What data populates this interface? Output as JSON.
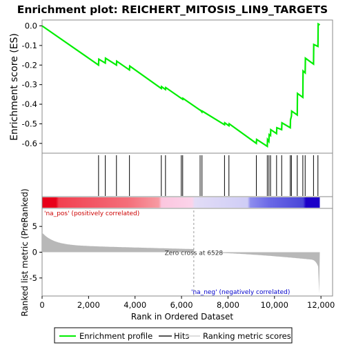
{
  "title": "Enrichment plot: REICHERT_MITOSIS_LIN9_TARGETS",
  "colors": {
    "profile": "#00ee00",
    "hits": "#000000",
    "metric_fill": "#b8b8b8",
    "pos_label": "#cc0000",
    "neg_label": "#0000cc",
    "zero_line": "#999999"
  },
  "chart_data": {
    "type": "line",
    "xlabel": "Rank in Ordered Dataset",
    "x_ticks": [
      0,
      2000,
      4000,
      6000,
      8000,
      10000,
      12000
    ],
    "x_tick_labels": [
      "0",
      "2,000",
      "4,000",
      "6,000",
      "8,000",
      "10,000",
      "12,000"
    ],
    "xlim": [
      0,
      12500
    ],
    "n_genes": 11950,
    "es_panel": {
      "ylabel": "Enrichment score (ES)",
      "ylim": [
        -0.65,
        0.03
      ],
      "y_ticks": [
        0.0,
        -0.1,
        -0.2,
        -0.3,
        -0.4,
        -0.5,
        -0.6
      ],
      "y_tick_labels": [
        "0.0",
        "-0.1",
        "-0.2",
        "-0.3",
        "-0.4",
        "-0.5",
        "-0.6"
      ],
      "series": [
        {
          "name": "Enrichment profile",
          "x": [
            0,
            2430,
            2440,
            2720,
            2730,
            3200,
            3210,
            3760,
            3770,
            5130,
            5140,
            5310,
            5320,
            5990,
            6000,
            6050,
            6060,
            6800,
            6810,
            6880,
            6890,
            7850,
            7860,
            8040,
            8050,
            9220,
            9230,
            9690,
            9700,
            9760,
            9770,
            9830,
            9840,
            10090,
            10100,
            10310,
            10320,
            10680,
            10690,
            10730,
            10740,
            10980,
            10990,
            11220,
            11230,
            11320,
            11330,
            11680,
            11690,
            11870,
            11880,
            11950
          ],
          "y": [
            0.0,
            -0.2,
            -0.17,
            -0.19,
            -0.165,
            -0.2,
            -0.18,
            -0.225,
            -0.205,
            -0.32,
            -0.31,
            -0.325,
            -0.315,
            -0.37,
            -0.37,
            -0.375,
            -0.37,
            -0.43,
            -0.43,
            -0.44,
            -0.435,
            -0.505,
            -0.495,
            -0.51,
            -0.5,
            -0.6,
            -0.58,
            -0.615,
            -0.58,
            -0.59,
            -0.555,
            -0.56,
            -0.53,
            -0.55,
            -0.52,
            -0.53,
            -0.495,
            -0.52,
            -0.48,
            -0.46,
            -0.435,
            -0.455,
            -0.345,
            -0.365,
            -0.23,
            -0.24,
            -0.165,
            -0.195,
            -0.095,
            -0.105,
            0.01,
            0.005
          ]
        }
      ]
    },
    "hits": [
      2430,
      2720,
      3200,
      3760,
      5130,
      5310,
      5990,
      6050,
      6800,
      6880,
      7850,
      8040,
      9220,
      9690,
      9760,
      9830,
      10090,
      10310,
      10680,
      10730,
      10980,
      11220,
      11320,
      11680,
      11870
    ],
    "metric_panel": {
      "ylabel": "Ranked list metric (PreRanked)",
      "ylim": [
        -8.5,
        8.5
      ],
      "y_ticks": [
        5,
        0,
        -5
      ],
      "y_tick_labels": [
        "5",
        "0",
        "-5"
      ],
      "zero_cross": 6528,
      "zero_cross_label": "Zero cross at 6528",
      "pos_label": "'na_pos' (positively correlated)",
      "neg_label": "'na_neg' (negatively correlated)"
    },
    "legend": {
      "placement": "bottom",
      "entries": [
        "Enrichment profile",
        "Hits",
        "Ranking metric scores"
      ]
    }
  }
}
